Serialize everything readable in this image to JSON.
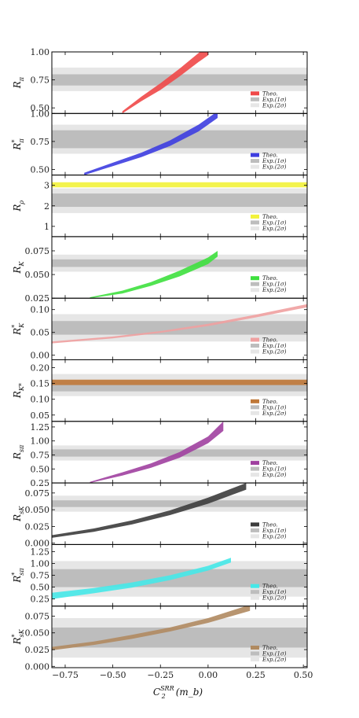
{
  "figure": {
    "xlabel": "C₂^{SRR}(m_b)",
    "xlabel_main": "C",
    "xlabel_sub": "2",
    "xlabel_sup": "SRR",
    "xlabel_arg": "(m_b)",
    "x_ticks": [
      -0.75,
      -0.5,
      -0.25,
      0.0,
      0.25,
      0.5
    ],
    "x_tick_labels": [
      "−0.75",
      "−0.50",
      "−0.25",
      "0.00",
      "0.25",
      "0.50"
    ],
    "xlim": [
      -0.82,
      0.52
    ]
  },
  "legend": {
    "theo": "Theo.",
    "exp1": "Exp.(1σ)",
    "exp2": "Exp.(2σ)"
  },
  "colors": {
    "exp1": "#bdbdbd",
    "exp2": "#e6e6e6"
  },
  "chart_data": [
    {
      "type": "area",
      "ylabel": "R_π",
      "ylabel_main": "R",
      "ylabel_sub": "π",
      "ylabel_sup": "",
      "ylim": [
        0.45,
        1.0
      ],
      "y_ticks": [
        0.5,
        0.75,
        1.0
      ],
      "y_tick_labels": [
        "0.50",
        "0.75",
        "1.00"
      ],
      "exp1": [
        0.7,
        0.8
      ],
      "exp2": [
        0.65,
        0.86
      ],
      "color": "#f04848",
      "theory": {
        "x": [
          -0.45,
          -0.35,
          -0.25,
          -0.15,
          -0.05,
          0.0
        ],
        "low": [
          0.45,
          0.56,
          0.66,
          0.78,
          0.91,
          0.97
        ],
        "high": [
          0.47,
          0.6,
          0.72,
          0.85,
          0.99,
          1.05
        ]
      }
    },
    {
      "type": "area",
      "ylabel": "R*_π",
      "ylabel_main": "R",
      "ylabel_sub": "π",
      "ylabel_sup": "*",
      "ylim": [
        0.45,
        1.0
      ],
      "y_ticks": [
        0.5,
        0.75,
        1.0
      ],
      "y_tick_labels": [
        "0.50",
        "0.75",
        "1.00"
      ],
      "exp1": [
        0.69,
        0.85
      ],
      "exp2": [
        0.64,
        0.9
      ],
      "color": "#3d3de0",
      "theory": {
        "x": [
          -0.65,
          -0.5,
          -0.35,
          -0.2,
          -0.05,
          0.05
        ],
        "low": [
          0.45,
          0.53,
          0.61,
          0.71,
          0.84,
          0.96
        ],
        "high": [
          0.47,
          0.56,
          0.65,
          0.76,
          0.9,
          1.02
        ]
      }
    },
    {
      "type": "area",
      "ylabel": "R_ρ",
      "ylabel_main": "R",
      "ylabel_sub": "ρ",
      "ylabel_sup": "",
      "ylim": [
        0.5,
        3.5
      ],
      "y_ticks": [
        1,
        2,
        3
      ],
      "y_tick_labels": [
        "1",
        "2",
        "3"
      ],
      "exp1": [
        1.95,
        2.6
      ],
      "exp2": [
        1.65,
        2.85
      ],
      "color": "#f2f23a",
      "theory": {
        "x": [
          -0.82,
          0.52
        ],
        "low": [
          2.9,
          2.9
        ],
        "high": [
          3.15,
          3.15
        ]
      }
    },
    {
      "type": "area",
      "ylabel": "R_K",
      "ylabel_main": "R",
      "ylabel_sub": "K",
      "ylabel_sup": "",
      "ylim": [
        0.025,
        0.09
      ],
      "y_ticks": [
        0.025,
        0.05,
        0.075
      ],
      "y_tick_labels": [
        "0.025",
        "0.050",
        "0.075"
      ],
      "exp1": [
        0.058,
        0.066
      ],
      "exp2": [
        0.053,
        0.071
      ],
      "color": "#3ee03e",
      "theory": {
        "x": [
          -0.62,
          -0.45,
          -0.3,
          -0.15,
          0.0,
          0.05
        ],
        "low": [
          0.025,
          0.03,
          0.038,
          0.048,
          0.061,
          0.069
        ],
        "high": [
          0.026,
          0.033,
          0.042,
          0.054,
          0.068,
          0.075
        ]
      }
    },
    {
      "type": "area",
      "ylabel": "R*_K",
      "ylabel_main": "R",
      "ylabel_sub": "K",
      "ylabel_sup": "*",
      "ylim": [
        -0.01,
        0.125
      ],
      "y_ticks": [
        0.0,
        0.05,
        0.1
      ],
      "y_tick_labels": [
        "0.00",
        "0.05",
        "0.10"
      ],
      "exp1": [
        0.045,
        0.075
      ],
      "exp2": [
        0.03,
        0.09
      ],
      "color": "#f0a0a0",
      "theory": {
        "x": [
          -0.82,
          -0.5,
          -0.25,
          0.0,
          0.25,
          0.52
        ],
        "low": [
          0.026,
          0.037,
          0.049,
          0.064,
          0.083,
          0.105
        ],
        "high": [
          0.03,
          0.041,
          0.053,
          0.069,
          0.089,
          0.112
        ]
      }
    },
    {
      "type": "area",
      "ylabel": "R_K*",
      "ylabel_main": "R",
      "ylabel_sub": "K*",
      "ylabel_sup": "",
      "ylim": [
        0.03,
        0.225
      ],
      "y_ticks": [
        0.05,
        0.1,
        0.15,
        0.2
      ],
      "y_tick_labels": [
        "0.05",
        "0.10",
        "0.15",
        "0.20"
      ],
      "exp1": [
        0.125,
        0.16
      ],
      "exp2": [
        0.11,
        0.18
      ],
      "color": "#c07838",
      "theory": {
        "x": [
          -0.82,
          0.52
        ],
        "low": [
          0.145,
          0.145
        ],
        "high": [
          0.162,
          0.162
        ]
      }
    },
    {
      "type": "area",
      "ylabel": "R_sπ",
      "ylabel_main": "R",
      "ylabel_sub": "sπ",
      "ylabel_sup": "",
      "ylim": [
        0.25,
        1.35
      ],
      "y_ticks": [
        0.25,
        0.5,
        0.75,
        1.0,
        1.25
      ],
      "y_tick_labels": [
        "0.25",
        "0.50",
        "0.75",
        "1.00",
        "1.25"
      ],
      "exp1": [
        0.72,
        0.85
      ],
      "exp2": [
        0.65,
        0.92
      ],
      "color": "#a040a0",
      "theory": {
        "x": [
          -0.62,
          -0.45,
          -0.3,
          -0.15,
          0.0,
          0.08
        ],
        "low": [
          0.25,
          0.38,
          0.52,
          0.7,
          0.96,
          1.18
        ],
        "high": [
          0.27,
          0.44,
          0.6,
          0.8,
          1.08,
          1.35
        ]
      }
    },
    {
      "type": "area",
      "ylabel": "R_sK",
      "ylabel_main": "R",
      "ylabel_sub": "sK",
      "ylabel_sup": "",
      "ylim": [
        -0.002,
        0.09
      ],
      "y_ticks": [
        0.0,
        0.025,
        0.05,
        0.075
      ],
      "y_tick_labels": [
        "0.000",
        "0.025",
        "0.050",
        "0.075"
      ],
      "exp1": [
        0.054,
        0.064
      ],
      "exp2": [
        0.047,
        0.071
      ],
      "color": "#3c3c3c",
      "theory": {
        "x": [
          -0.82,
          -0.6,
          -0.4,
          -0.2,
          0.0,
          0.2
        ],
        "low": [
          0.008,
          0.017,
          0.028,
          0.042,
          0.059,
          0.08
        ],
        "high": [
          0.012,
          0.022,
          0.034,
          0.049,
          0.068,
          0.09
        ]
      }
    },
    {
      "type": "area",
      "ylabel": "R*_sπ",
      "ylabel_main": "R",
      "ylabel_sub": "sπ",
      "ylabel_sup": "*",
      "ylim": [
        0.1,
        1.4
      ],
      "y_ticks": [
        0.25,
        0.5,
        0.75,
        1.0,
        1.25
      ],
      "y_tick_labels": [
        "0.25",
        "0.50",
        "0.75",
        "1.00",
        "1.25"
      ],
      "exp1": [
        0.5,
        0.88
      ],
      "exp2": [
        0.3,
        1.05
      ],
      "color": "#45e8e8",
      "theory": {
        "x": [
          -0.82,
          -0.6,
          -0.4,
          -0.2,
          0.0,
          0.12
        ],
        "low": [
          0.25,
          0.37,
          0.49,
          0.65,
          0.85,
          1.02
        ],
        "high": [
          0.38,
          0.48,
          0.6,
          0.75,
          0.95,
          1.12
        ]
      }
    },
    {
      "type": "area",
      "ylabel": "R*_sK",
      "ylabel_main": "R",
      "ylabel_sub": "sK",
      "ylabel_sup": "*",
      "ylim": [
        -0.002,
        0.09
      ],
      "y_ticks": [
        0.0,
        0.025,
        0.05,
        0.075
      ],
      "y_tick_labels": [
        "0.000",
        "0.025",
        "0.050",
        "0.075"
      ],
      "exp1": [
        0.028,
        0.058
      ],
      "exp2": [
        0.013,
        0.072
      ],
      "color": "#b08a60",
      "theory": {
        "x": [
          -0.82,
          -0.6,
          -0.4,
          -0.2,
          0.0,
          0.22
        ],
        "low": [
          0.024,
          0.032,
          0.041,
          0.052,
          0.065,
          0.083
        ],
        "high": [
          0.029,
          0.037,
          0.047,
          0.058,
          0.072,
          0.092
        ]
      }
    }
  ]
}
